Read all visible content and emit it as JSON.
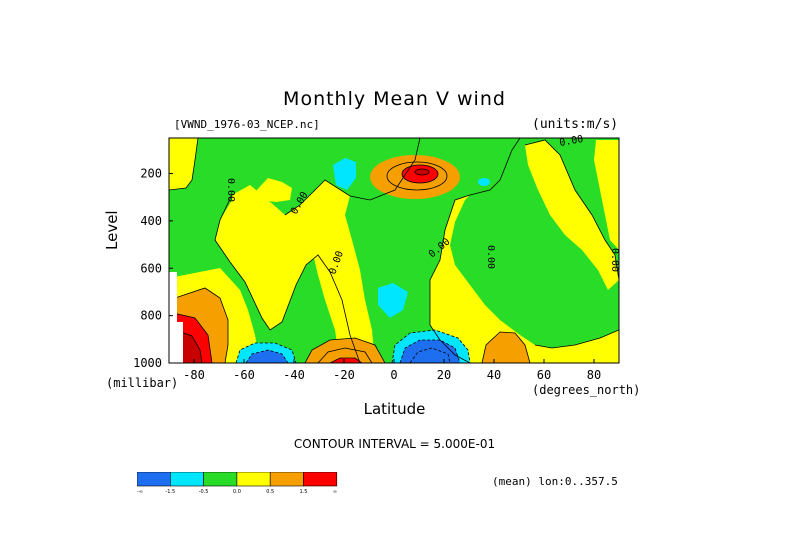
{
  "header": {
    "title": "Monthly Mean V wind",
    "dataset": "[VWND_1976-03_NCEP.nc]",
    "units": "(units:m/s)"
  },
  "axes": {
    "xlabel": "Latitude",
    "xunit": "(degrees_north)",
    "ylabel": "Level",
    "yunit": "(millibar)"
  },
  "footer": {
    "contour_interval": "CONTOUR INTERVAL = 5.000E-01",
    "mean": "(mean) lon:0..357.5"
  },
  "colors": {
    "blue": "#1e6ef0",
    "cyan": "#00e6ff",
    "green": "#28dc28",
    "yellow": "#ffff00",
    "orange": "#f5a000",
    "red": "#ff0000",
    "darkred": "#c80000"
  },
  "chart_data": {
    "type": "heatmap",
    "title": "Monthly Mean V wind",
    "xlabel": "Latitude",
    "ylabel": "Level",
    "xlim": [
      -90,
      90
    ],
    "ylim": [
      1000,
      50
    ],
    "y_inverted": true,
    "x_ticks": [
      -80,
      -60,
      -40,
      -20,
      0,
      20,
      40,
      60,
      80
    ],
    "y_ticks": [
      200,
      400,
      600,
      800,
      1000
    ],
    "contour_interval": 0.5,
    "contour_labels": [
      "0.00",
      "0.00",
      "0.00",
      "0.00",
      "0.00",
      "0.00",
      "0.00"
    ],
    "colorbar": {
      "levels": [
        "-∞",
        "-1.5",
        "-0.5",
        "0.0",
        "0.5",
        "1.5",
        "∞"
      ],
      "colors": [
        "#1e6ef0",
        "#00e6ff",
        "#28dc28",
        "#ffff00",
        "#f5a000",
        "#ff0000"
      ]
    },
    "features": [
      {
        "lat": 10,
        "level": 150,
        "value": 2.0,
        "sign": "positive"
      },
      {
        "lat": -85,
        "level": 950,
        "value": 3.0,
        "sign": "positive"
      },
      {
        "lat": -20,
        "level": 960,
        "value": 1.5,
        "sign": "positive"
      },
      {
        "lat": 10,
        "level": 960,
        "value": -2.5,
        "sign": "negative"
      },
      {
        "lat": -55,
        "level": 990,
        "value": -2.0,
        "sign": "negative"
      },
      {
        "lat": 0,
        "level": 720,
        "value": -0.8,
        "sign": "negative"
      },
      {
        "lat": -20,
        "level": 150,
        "value": -0.7,
        "sign": "negative"
      }
    ]
  }
}
